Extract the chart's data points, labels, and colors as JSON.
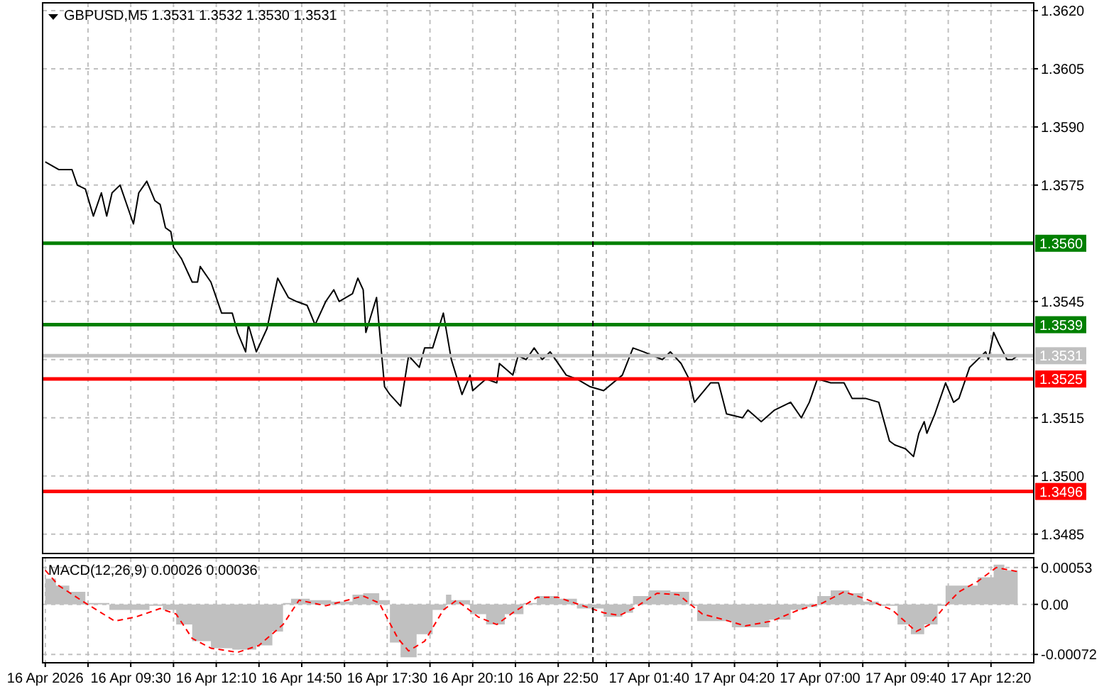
{
  "chart_data": [
    {
      "type": "line",
      "title": "GBPUSD,M5  1.3531 1.3532 1.3530 1.3531",
      "xlim": [
        "2026-04-16T06:45",
        "2026-04-17T13:40"
      ],
      "ylim": [
        1.348,
        1.3622
      ],
      "grid": true,
      "tick_labels": "y",
      "xticks": [
        {
          "value": "2026-04-16T08:10",
          "label": null
        },
        {
          "value": "2026-04-16T09:30",
          "label": null
        },
        {
          "value": "2026-04-16T10:50",
          "label": null
        },
        {
          "value": "2026-04-16T12:10",
          "label": null
        },
        {
          "value": "2026-04-16T13:30",
          "label": null
        },
        {
          "value": "2026-04-16T14:50",
          "label": null
        },
        {
          "value": "2026-04-16T16:10",
          "label": null
        },
        {
          "value": "2026-04-16T17:30",
          "label": null
        },
        {
          "value": "2026-04-16T18:50",
          "label": null
        },
        {
          "value": "2026-04-16T20:10",
          "label": null
        },
        {
          "value": "2026-04-16T21:30",
          "label": null
        },
        {
          "value": "2026-04-16T22:50",
          "label": null
        },
        {
          "value": "2026-04-17T00:20",
          "label": null
        },
        {
          "value": "2026-04-17T01:40",
          "label": null
        },
        {
          "value": "2026-04-17T03:00",
          "label": null
        },
        {
          "value": "2026-04-17T04:20",
          "label": null
        },
        {
          "value": "2026-04-17T05:40",
          "label": null
        },
        {
          "value": "2026-04-17T07:00",
          "label": null
        },
        {
          "value": "2026-04-17T08:20",
          "label": null
        },
        {
          "value": "2026-04-17T09:40",
          "label": null
        },
        {
          "value": "2026-04-17T11:00",
          "label": null
        },
        {
          "value": "2026-04-17T12:20",
          "label": null
        }
      ],
      "yticks": [
        {
          "value": 1.362,
          "label": "1.3620"
        },
        {
          "value": 1.3605,
          "label": "1.3605"
        },
        {
          "value": 1.359,
          "label": "1.3590"
        },
        {
          "value": 1.3575,
          "label": "1.3575"
        },
        {
          "value": 1.356,
          "label": null
        },
        {
          "value": 1.3545,
          "label": "1.3545"
        },
        {
          "value": 1.353,
          "label": null
        },
        {
          "value": 1.3515,
          "label": "1.3515"
        },
        {
          "value": 1.35,
          "label": "1.3500"
        },
        {
          "value": 1.3485,
          "label": "1.3485"
        }
      ],
      "ref_lines": [
        {
          "axis": "y",
          "value": 1.356,
          "label": "1.3560",
          "color": "#008000"
        },
        {
          "axis": "y",
          "value": 1.3539,
          "label": "1.3539",
          "color": "#008000"
        },
        {
          "axis": "y",
          "value": 1.3531,
          "label": "1.3531",
          "color": "#c0c0c0"
        },
        {
          "axis": "y",
          "value": 1.3525,
          "label": "1.3525",
          "color": "#ff0000"
        },
        {
          "axis": "y",
          "value": 1.3496,
          "label": "1.3496",
          "color": "#ff0000"
        },
        {
          "axis": "x",
          "value": "2026-04-16T23:55",
          "color": "#000000",
          "line_style": "dashed"
        }
      ],
      "series": [
        {
          "color": "#000000",
          "x": [
            "2026-04-16T06:50",
            "2026-04-16T07:15",
            "2026-04-16T07:40",
            "2026-04-16T07:50",
            "2026-04-16T08:05",
            "2026-04-16T08:20",
            "2026-04-16T08:35",
            "2026-04-16T08:45",
            "2026-04-16T08:55",
            "2026-04-16T09:10",
            "2026-04-16T09:20",
            "2026-04-16T09:35",
            "2026-04-16T09:45",
            "2026-04-16T10:00",
            "2026-04-16T10:15",
            "2026-04-16T10:25",
            "2026-04-16T10:35",
            "2026-04-16T10:45",
            "2026-04-16T10:50",
            "2026-04-16T11:05",
            "2026-04-16T11:25",
            "2026-04-16T11:35",
            "2026-04-16T11:40",
            "2026-04-16T12:00",
            "2026-04-16T12:20",
            "2026-04-16T12:40",
            "2026-04-16T12:50",
            "2026-04-16T13:05",
            "2026-04-16T13:10",
            "2026-04-16T13:25",
            "2026-04-16T13:45",
            "2026-04-16T14:05",
            "2026-04-16T14:25",
            "2026-04-16T14:40",
            "2026-04-16T15:00",
            "2026-04-16T15:15",
            "2026-04-16T15:35",
            "2026-04-16T15:50",
            "2026-04-16T16:00",
            "2026-04-16T16:25",
            "2026-04-16T16:35",
            "2026-04-16T16:45",
            "2026-04-16T16:50",
            "2026-04-16T17:10",
            "2026-04-16T17:25",
            "2026-04-16T17:35",
            "2026-04-16T17:55",
            "2026-04-16T18:10",
            "2026-04-16T18:30",
            "2026-04-16T18:40",
            "2026-04-16T18:55",
            "2026-04-16T19:15",
            "2026-04-16T19:30",
            "2026-04-16T19:50",
            "2026-04-16T20:05",
            "2026-04-16T20:10",
            "2026-04-16T20:35",
            "2026-04-16T20:55",
            "2026-04-16T21:00",
            "2026-04-16T21:25",
            "2026-04-16T21:35",
            "2026-04-16T21:50",
            "2026-04-16T22:05",
            "2026-04-16T22:20",
            "2026-04-16T22:35",
            "2026-04-16T22:55",
            "2026-04-16T23:05",
            "2026-04-16T23:25",
            "2026-04-16T23:50",
            "2026-04-17T00:15",
            "2026-04-17T00:50",
            "2026-04-17T01:10",
            "2026-04-17T01:30",
            "2026-04-17T02:05",
            "2026-04-17T02:20",
            "2026-04-17T02:40",
            "2026-04-17T02:55",
            "2026-04-17T03:05",
            "2026-04-17T03:35",
            "2026-04-17T03:50",
            "2026-04-17T04:05",
            "2026-04-17T04:35",
            "2026-04-17T04:45",
            "2026-04-17T05:10",
            "2026-04-17T05:35",
            "2026-04-17T06:05",
            "2026-04-17T06:25",
            "2026-04-17T06:40",
            "2026-04-17T06:55",
            "2026-04-17T07:20",
            "2026-04-17T07:45",
            "2026-04-17T08:00",
            "2026-04-17T08:25",
            "2026-04-17T08:50",
            "2026-04-17T09:10",
            "2026-04-17T09:20",
            "2026-04-17T09:40",
            "2026-04-17T09:55",
            "2026-04-17T10:05",
            "2026-04-17T10:15",
            "2026-04-17T10:20",
            "2026-04-17T10:35",
            "2026-04-17T10:55",
            "2026-04-17T11:10",
            "2026-04-17T11:20",
            "2026-04-17T11:30",
            "2026-04-17T11:40",
            "2026-04-17T12:10",
            "2026-04-17T12:15",
            "2026-04-17T12:25",
            "2026-04-17T12:35",
            "2026-04-17T12:50",
            "2026-04-17T13:00",
            "2026-04-17T13:10"
          ],
          "values": [
            1.3581,
            1.3579,
            1.3579,
            1.3575,
            1.3574,
            1.3567,
            1.3573,
            1.3567,
            1.3573,
            1.3575,
            1.3571,
            1.3565,
            1.3573,
            1.3576,
            1.3571,
            1.357,
            1.3564,
            1.3563,
            1.3559,
            1.3556,
            1.355,
            1.355,
            1.3554,
            1.355,
            1.3542,
            1.3542,
            1.3537,
            1.3532,
            1.3539,
            1.3532,
            1.3538,
            1.3551,
            1.3546,
            1.3545,
            1.3544,
            1.3539,
            1.3545,
            1.3548,
            1.3545,
            1.3547,
            1.3551,
            1.3548,
            1.3537,
            1.3546,
            1.3523,
            1.3521,
            1.3518,
            1.3531,
            1.3528,
            1.3533,
            1.3533,
            1.3542,
            1.353,
            1.3521,
            1.3526,
            1.3522,
            1.3525,
            1.3524,
            1.3529,
            1.3526,
            1.3531,
            1.353,
            1.3533,
            1.353,
            1.3532,
            1.3528,
            1.3526,
            1.3525,
            1.3523,
            1.3522,
            1.3526,
            1.3533,
            1.3532,
            1.353,
            1.3532,
            1.3529,
            1.3525,
            1.3519,
            1.3524,
            1.3524,
            1.3516,
            1.3515,
            1.3517,
            1.3514,
            1.3517,
            1.3519,
            1.3515,
            1.3519,
            1.3525,
            1.3524,
            1.3524,
            1.352,
            1.352,
            1.3519,
            1.3509,
            1.3508,
            1.3507,
            1.3505,
            1.3511,
            1.3514,
            1.3511,
            1.3516,
            1.3524,
            1.3519,
            1.352,
            1.3524,
            1.3528,
            1.3532,
            1.353,
            1.3537,
            1.3534,
            1.353,
            1.353,
            1.3531
          ]
        }
      ]
    },
    {
      "type": "line",
      "title": "MACD(12,26,9) 0.00026 0.00036",
      "xlim": [
        "2026-04-16T06:45",
        "2026-04-17T13:40"
      ],
      "ylim": [
        -0.00084,
        0.00067
      ],
      "grid": true,
      "tick_labels": "xy",
      "xticks": [
        {
          "value": "2026-04-16T06:50",
          "label": "16 Apr 2026"
        },
        {
          "value": "2026-04-16T08:10",
          "label": null
        },
        {
          "value": "2026-04-16T09:30",
          "label": "16 Apr 09:30"
        },
        {
          "value": "2026-04-16T10:50",
          "label": null
        },
        {
          "value": "2026-04-16T12:10",
          "label": "16 Apr 12:10"
        },
        {
          "value": "2026-04-16T13:30",
          "label": null
        },
        {
          "value": "2026-04-16T14:50",
          "label": "16 Apr 14:50"
        },
        {
          "value": "2026-04-16T16:10",
          "label": null
        },
        {
          "value": "2026-04-16T17:30",
          "label": "16 Apr 17:30"
        },
        {
          "value": "2026-04-16T18:50",
          "label": null
        },
        {
          "value": "2026-04-16T20:10",
          "label": "16 Apr 20:10"
        },
        {
          "value": "2026-04-16T21:30",
          "label": null
        },
        {
          "value": "2026-04-16T22:50",
          "label": "16 Apr 22:50"
        },
        {
          "value": "2026-04-17T00:20",
          "label": null
        },
        {
          "value": "2026-04-17T01:40",
          "label": "17 Apr 01:40"
        },
        {
          "value": "2026-04-17T03:00",
          "label": null
        },
        {
          "value": "2026-04-17T04:20",
          "label": "17 Apr 04:20"
        },
        {
          "value": "2026-04-17T05:40",
          "label": null
        },
        {
          "value": "2026-04-17T07:00",
          "label": "17 Apr 07:00"
        },
        {
          "value": "2026-04-17T08:20",
          "label": null
        },
        {
          "value": "2026-04-17T09:40",
          "label": "17 Apr 09:40"
        },
        {
          "value": "2026-04-17T11:00",
          "label": null
        },
        {
          "value": "2026-04-17T12:20",
          "label": "17 Apr 12:20"
        }
      ],
      "yticks": [
        {
          "value": 0.00053,
          "label": "0.00053"
        },
        {
          "value": 0,
          "label": "0.00"
        },
        {
          "value": -0.00072,
          "label": "-0.00072"
        }
      ],
      "ref_lines": [
        {
          "axis": "x",
          "value": "2026-04-16T23:55",
          "color": "#000000",
          "line_style": "dashed"
        }
      ],
      "series": [
        {
          "type": "area",
          "color": "#c0c0c0",
          "x": [
            "2026-04-16T06:50",
            "2026-04-16T07:10",
            "2026-04-16T07:35",
            "2026-04-16T08:05",
            "2026-04-16T08:50",
            "2026-04-16T09:30",
            "2026-04-16T10:05",
            "2026-04-16T10:30",
            "2026-04-16T10:55",
            "2026-04-16T11:25",
            "2026-04-16T12:00",
            "2026-04-16T12:40",
            "2026-04-16T13:25",
            "2026-04-16T13:55",
            "2026-04-16T14:15",
            "2026-04-16T14:30",
            "2026-04-16T15:05",
            "2026-04-16T15:45",
            "2026-04-16T16:25",
            "2026-04-16T16:45",
            "2026-04-16T17:15",
            "2026-04-16T17:35",
            "2026-04-16T17:55",
            "2026-04-16T18:25",
            "2026-04-16T18:55",
            "2026-04-16T19:20",
            "2026-04-16T19:30",
            "2026-04-16T20:05",
            "2026-04-16T20:35",
            "2026-04-16T21:10",
            "2026-04-16T21:45",
            "2026-04-16T22:10",
            "2026-04-16T22:50",
            "2026-04-16T23:25",
            "2026-04-17T00:15",
            "2026-04-17T00:50",
            "2026-04-17T01:10",
            "2026-04-17T01:40",
            "2026-04-17T02:20",
            "2026-04-17T02:55",
            "2026-04-17T03:10",
            "2026-04-17T03:45",
            "2026-04-17T04:15",
            "2026-04-17T04:50",
            "2026-04-17T05:25",
            "2026-04-17T06:05",
            "2026-04-17T06:30",
            "2026-04-17T06:55",
            "2026-04-17T07:20",
            "2026-04-17T07:55",
            "2026-04-17T08:20",
            "2026-04-17T08:50",
            "2026-04-17T09:25",
            "2026-04-17T09:50",
            "2026-04-17T10:15",
            "2026-04-17T10:40",
            "2026-04-17T10:55",
            "2026-04-17T11:30",
            "2026-04-17T11:55",
            "2026-04-17T12:25",
            "2026-04-17T12:45",
            "2026-04-17T13:10"
          ],
          "values": [
            0.00037,
            0.00027,
            0.00018,
            2e-05,
            -8e-05,
            -8e-05,
            -2e-05,
            -8e-05,
            -0.00029,
            -0.00053,
            -0.00063,
            -0.00065,
            -0.00059,
            -0.00039,
            2e-05,
            8e-05,
            6e-05,
            4e-05,
            0.00014,
            0.00016,
            6e-05,
            -0.00055,
            -0.00076,
            -0.00043,
            -8e-05,
            0.00014,
            6e-05,
            -0.00014,
            -0.00029,
            -0.00014,
            2e-05,
            0.00012,
            8e-05,
            -6e-05,
            -0.00018,
            -0.00012,
            0.00012,
            0.0002,
            0.00018,
            -2e-05,
            -0.00024,
            -0.00024,
            -0.00033,
            -0.00033,
            -0.00022,
            -8e-05,
            -4e-05,
            0.00012,
            0.0002,
            0.00016,
            4e-05,
            -2e-05,
            -0.00029,
            -0.00043,
            -0.00029,
            -2e-05,
            0.00027,
            0.00027,
            0.00039,
            0.00057,
            0.00049,
            0.00033
          ]
        },
        {
          "color": "#ff0000",
          "line_style": "dashed",
          "x": [
            "2026-04-16T06:50",
            "2026-04-16T07:15",
            "2026-04-16T08:05",
            "2026-04-16T09:00",
            "2026-04-16T09:40",
            "2026-04-16T10:25",
            "2026-04-16T10:55",
            "2026-04-16T11:25",
            "2026-04-16T12:00",
            "2026-04-16T12:50",
            "2026-04-16T13:30",
            "2026-04-16T14:15",
            "2026-04-16T14:45",
            "2026-04-16T15:35",
            "2026-04-16T16:45",
            "2026-04-16T17:15",
            "2026-04-16T17:50",
            "2026-04-16T18:10",
            "2026-04-16T18:40",
            "2026-04-16T19:15",
            "2026-04-16T19:40",
            "2026-04-16T20:20",
            "2026-04-16T20:55",
            "2026-04-16T21:25",
            "2026-04-16T22:10",
            "2026-04-16T22:50",
            "2026-04-16T23:05",
            "2026-04-17T00:15",
            "2026-04-17T00:45",
            "2026-04-17T01:15",
            "2026-04-17T01:55",
            "2026-04-17T02:35",
            "2026-04-17T03:20",
            "2026-04-17T04:00",
            "2026-04-17T04:40",
            "2026-04-17T05:30",
            "2026-04-17T06:20",
            "2026-04-17T07:05",
            "2026-04-17T07:45",
            "2026-04-17T08:25",
            "2026-04-17T09:15",
            "2026-04-17T10:00",
            "2026-04-17T10:25",
            "2026-04-17T10:55",
            "2026-04-17T11:20",
            "2026-04-17T11:55",
            "2026-04-17T12:30",
            "2026-04-17T13:10"
          ],
          "values": [
            0.00049,
            0.00027,
            2e-05,
            -0.00024,
            -0.00018,
            -6e-05,
            -0.00014,
            -0.00049,
            -0.00063,
            -0.00069,
            -0.00059,
            -0.00029,
            6e-05,
            -2e-05,
            0.00012,
            2e-05,
            -0.00049,
            -0.00067,
            -0.00053,
            -8e-05,
            6e-05,
            -0.00018,
            -0.00029,
            -0.00012,
            0.0001,
            0.0001,
            6e-05,
            -0.00012,
            -0.00016,
            -4e-05,
            0.00016,
            0.00014,
            -0.00014,
            -0.00022,
            -0.00031,
            -0.00024,
            -8e-05,
            2e-05,
            0.00018,
            8e-05,
            -8e-05,
            -0.00039,
            -0.00029,
            -2e-05,
            0.00018,
            0.00033,
            0.00053,
            0.00047
          ]
        }
      ]
    }
  ]
}
